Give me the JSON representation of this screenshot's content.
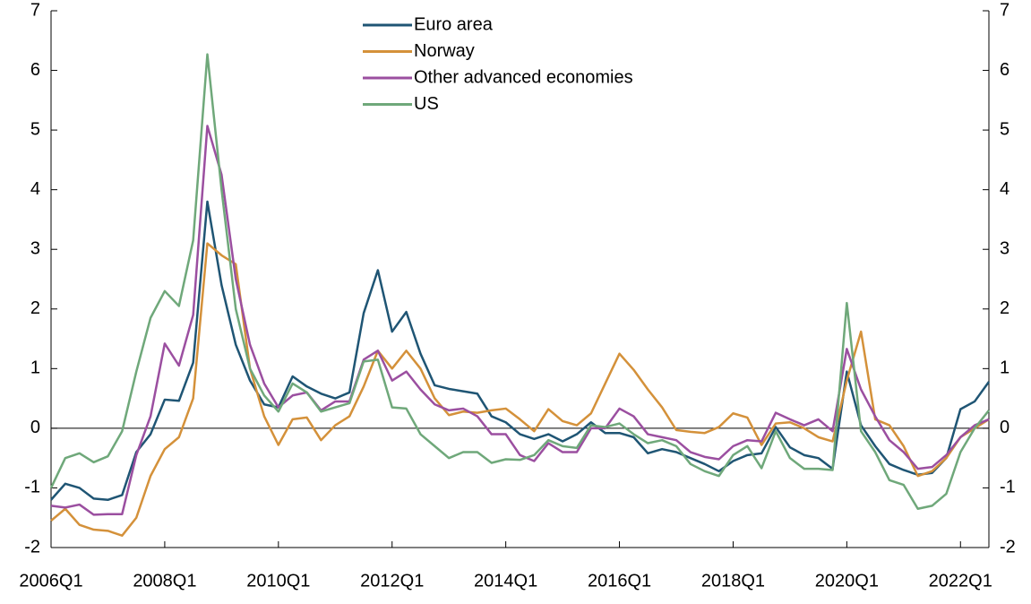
{
  "chart_data": {
    "type": "line",
    "categories": [
      "2006Q1",
      null,
      null,
      null,
      null,
      null,
      null,
      null,
      "2008Q1",
      null,
      null,
      null,
      null,
      null,
      null,
      null,
      "2010Q1",
      null,
      null,
      null,
      null,
      null,
      null,
      null,
      "2012Q1",
      null,
      null,
      null,
      null,
      null,
      null,
      null,
      "2014Q1",
      null,
      null,
      null,
      null,
      null,
      null,
      null,
      "2016Q1",
      null,
      null,
      null,
      null,
      null,
      null,
      null,
      "2018Q1",
      null,
      null,
      null,
      null,
      null,
      null,
      null,
      "2020Q1",
      null,
      null,
      null,
      null,
      null,
      null,
      null,
      "2022Q1",
      null,
      null
    ],
    "series": [
      {
        "name": "Euro area",
        "color": "#1f5574",
        "values": [
          -1.2,
          -0.93,
          -1.0,
          -1.18,
          -1.2,
          -1.12,
          -0.4,
          -0.1,
          0.48,
          0.46,
          1.1,
          3.8,
          2.4,
          1.4,
          0.8,
          0.4,
          0.35,
          0.87,
          0.7,
          0.58,
          0.5,
          0.6,
          1.93,
          2.65,
          1.62,
          1.95,
          1.25,
          0.72,
          0.66,
          0.62,
          0.58,
          0.2,
          0.1,
          -0.1,
          -0.18,
          -0.1,
          -0.22,
          -0.1,
          0.1,
          -0.08,
          -0.08,
          -0.15,
          -0.42,
          -0.35,
          -0.4,
          -0.5,
          -0.6,
          -0.72,
          -0.55,
          -0.45,
          -0.42,
          0.02,
          -0.32,
          -0.45,
          -0.5,
          -0.68,
          0.95,
          0.05,
          -0.3,
          -0.6,
          -0.7,
          -0.78,
          -0.75,
          -0.5,
          0.32,
          0.45,
          0.78
        ]
      },
      {
        "name": "Norway",
        "color": "#d4913a",
        "values": [
          -1.55,
          -1.35,
          -1.62,
          -1.7,
          -1.72,
          -1.8,
          -1.5,
          -0.8,
          -0.35,
          -0.15,
          0.5,
          3.1,
          2.9,
          2.75,
          1.0,
          0.2,
          -0.28,
          0.15,
          0.18,
          -0.2,
          0.05,
          0.2,
          0.7,
          1.3,
          1.0,
          1.3,
          1.0,
          0.5,
          0.22,
          0.28,
          0.26,
          0.3,
          0.33,
          0.15,
          -0.05,
          0.32,
          0.12,
          0.05,
          0.25,
          0.75,
          1.25,
          0.98,
          0.65,
          0.35,
          -0.03,
          -0.06,
          -0.08,
          0.02,
          0.25,
          0.18,
          -0.28,
          0.08,
          0.1,
          0.0,
          -0.15,
          -0.22,
          0.8,
          1.62,
          0.15,
          0.05,
          -0.3,
          -0.8,
          -0.72,
          -0.5,
          -0.15,
          0.0,
          0.15
        ]
      },
      {
        "name": "Other advanced economies",
        "color": "#9b4fa0",
        "values": [
          -1.3,
          -1.33,
          -1.28,
          -1.45,
          -1.44,
          -1.44,
          -0.45,
          0.2,
          1.42,
          1.05,
          1.9,
          5.07,
          4.25,
          2.5,
          1.4,
          0.75,
          0.35,
          0.55,
          0.6,
          0.3,
          0.45,
          0.45,
          1.15,
          1.3,
          0.8,
          0.95,
          0.65,
          0.4,
          0.3,
          0.33,
          0.2,
          -0.1,
          -0.1,
          -0.45,
          -0.55,
          -0.25,
          -0.4,
          -0.4,
          0.0,
          0.0,
          0.33,
          0.2,
          -0.1,
          -0.15,
          -0.2,
          -0.4,
          -0.48,
          -0.52,
          -0.3,
          -0.2,
          -0.22,
          0.26,
          0.15,
          0.05,
          0.15,
          -0.05,
          1.33,
          0.65,
          0.2,
          -0.2,
          -0.4,
          -0.68,
          -0.65,
          -0.45,
          -0.15,
          0.05,
          0.15
        ]
      },
      {
        "name": "US",
        "color": "#6fa87a",
        "values": [
          -1.0,
          -0.5,
          -0.42,
          -0.57,
          -0.47,
          -0.05,
          0.95,
          1.85,
          2.3,
          2.05,
          3.15,
          6.27,
          4.0,
          2.0,
          1.0,
          0.55,
          0.28,
          0.75,
          0.6,
          0.28,
          0.35,
          0.42,
          1.12,
          1.15,
          0.35,
          0.33,
          -0.1,
          -0.3,
          -0.5,
          -0.4,
          -0.4,
          -0.58,
          -0.52,
          -0.53,
          -0.45,
          -0.2,
          -0.3,
          -0.33,
          0.05,
          0.02,
          0.08,
          -0.1,
          -0.25,
          -0.2,
          -0.3,
          -0.6,
          -0.72,
          -0.8,
          -0.45,
          -0.3,
          -0.67,
          -0.05,
          -0.5,
          -0.68,
          -0.68,
          -0.7,
          2.1,
          -0.05,
          -0.4,
          -0.87,
          -0.95,
          -1.35,
          -1.3,
          -1.1,
          -0.4,
          0.0,
          0.3
        ]
      }
    ],
    "ylim": [
      -2,
      7
    ],
    "yticks": [
      -2,
      -1,
      0,
      1,
      2,
      3,
      4,
      5,
      6,
      7
    ],
    "y2lim": [
      -2,
      7
    ],
    "y2ticks": [
      -2,
      -1,
      0,
      1,
      2,
      3,
      4,
      5,
      6,
      7
    ],
    "baseline": 0,
    "legend": "upper center"
  }
}
